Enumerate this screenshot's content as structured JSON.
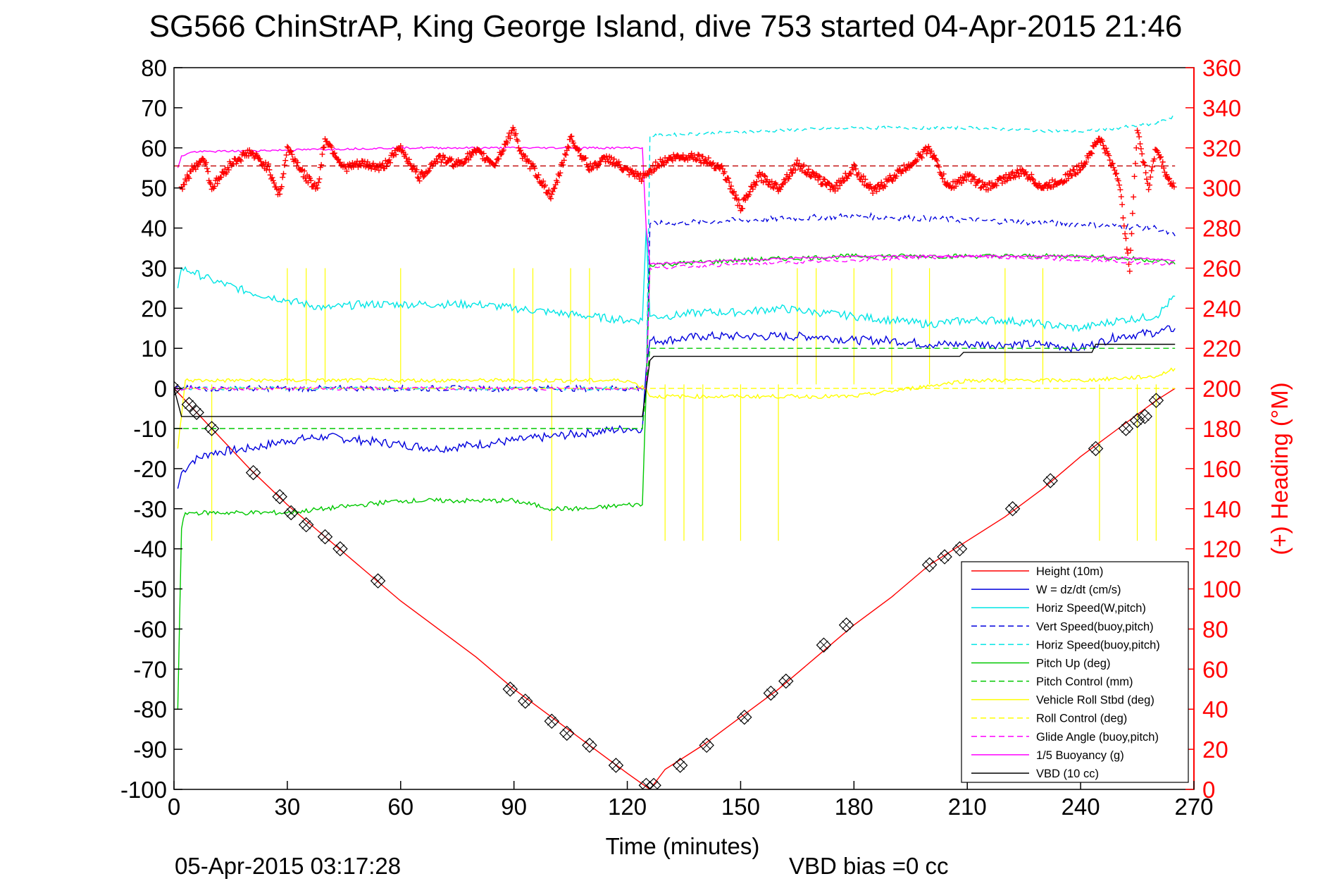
{
  "chart_data": {
    "type": "line",
    "title": "SG566 ChinStrAP, King George Island, dive 753 started 04-Apr-2015 21:46",
    "xlabel": "Time (minutes)",
    "ylabel_right": "(+) Heading (°M)",
    "footer_left": "05-Apr-2015 03:17:28",
    "footer_right": "VBD bias =0 cc",
    "xlim": [
      0,
      270
    ],
    "ylim": [
      -100,
      80
    ],
    "ylim_right": [
      0,
      360
    ],
    "xticks": [
      0,
      30,
      60,
      90,
      120,
      150,
      180,
      210,
      240,
      270
    ],
    "yticks": [
      80,
      70,
      60,
      50,
      40,
      30,
      20,
      10,
      0,
      -10,
      -20,
      -30,
      -40,
      -50,
      -60,
      -70,
      -80,
      -90,
      -100
    ],
    "yticks_right": [
      360,
      340,
      320,
      300,
      280,
      260,
      240,
      220,
      200,
      180,
      160,
      140,
      120,
      100,
      80,
      60,
      40,
      20,
      0
    ],
    "grid": false,
    "legend_position": "bottom-right",
    "series": [
      {
        "name": "Height (10m)",
        "color": "#ff0000",
        "style": "solid",
        "x": [
          0,
          10,
          20,
          30,
          40,
          50,
          60,
          70,
          80,
          90,
          100,
          110,
          120,
          126,
          130,
          140,
          150,
          160,
          170,
          180,
          190,
          200,
          210,
          220,
          230,
          240,
          250,
          260,
          265
        ],
        "y": [
          0,
          -10,
          -20,
          -29,
          -37,
          -45,
          -53,
          -60,
          -67,
          -75,
          -82,
          -89,
          -96,
          -100,
          -95,
          -89,
          -82,
          -75,
          -67,
          -59,
          -52,
          -44,
          -38,
          -32,
          -25,
          -17,
          -10,
          -3,
          0
        ]
      },
      {
        "name": "W = dz/dt (cm/s)",
        "color": "#0000dd",
        "style": "solid",
        "x": [
          1,
          2,
          5,
          10,
          20,
          30,
          40,
          50,
          60,
          70,
          80,
          90,
          100,
          110,
          120,
          124,
          125,
          126,
          130,
          140,
          150,
          160,
          170,
          180,
          190,
          200,
          210,
          220,
          230,
          240,
          250,
          260,
          265
        ],
        "y": [
          -25,
          -21,
          -18,
          -16,
          -15,
          -13,
          -12,
          -13,
          -14,
          -15,
          -14,
          -13,
          -12,
          -11,
          -10,
          -10,
          5,
          12,
          12,
          13,
          13,
          13,
          13,
          12,
          12,
          11,
          11,
          11,
          11,
          10,
          13,
          14,
          15
        ]
      },
      {
        "name": "Horiz Speed(W,pitch)",
        "color": "#00e5e5",
        "style": "solid",
        "x": [
          1,
          2,
          5,
          10,
          20,
          30,
          40,
          50,
          60,
          70,
          80,
          90,
          100,
          110,
          120,
          124,
          125,
          126,
          130,
          140,
          150,
          160,
          170,
          180,
          190,
          200,
          210,
          220,
          230,
          240,
          250,
          260,
          265
        ],
        "y": [
          25,
          30,
          29,
          27,
          24,
          22,
          20,
          21,
          21,
          21,
          21,
          20,
          19,
          18,
          17,
          17,
          40,
          18,
          18,
          19,
          19,
          20,
          19,
          18,
          17,
          16,
          17,
          17,
          16,
          15,
          17,
          18,
          23
        ]
      },
      {
        "name": "Vert Speed(buoy,pitch)",
        "color": "#0000dd",
        "style": "dashed",
        "x": [
          0,
          125,
          126,
          150,
          180,
          210,
          240,
          260,
          265
        ],
        "y": [
          0,
          0,
          41,
          42,
          43,
          42,
          41,
          40,
          38
        ]
      },
      {
        "name": "Horiz Speed(buoy,pitch)",
        "color": "#00e5e5",
        "style": "dashed",
        "x": [
          0,
          125,
          126,
          150,
          180,
          210,
          240,
          260,
          265
        ],
        "y": [
          0,
          0,
          63,
          64,
          65,
          65,
          64,
          66,
          68
        ]
      },
      {
        "name": "Pitch Up (deg)",
        "color": "#00c800",
        "style": "solid",
        "x": [
          1,
          2,
          3,
          5,
          10,
          20,
          30,
          40,
          50,
          60,
          70,
          80,
          90,
          100,
          110,
          120,
          124,
          125,
          126,
          130,
          150,
          180,
          210,
          240,
          260,
          265
        ],
        "y": [
          -80,
          -35,
          -31,
          -31,
          -31,
          -31,
          -31,
          -30,
          -29,
          -28,
          -28,
          -28,
          -28,
          -30,
          -30,
          -29,
          -29,
          0,
          31,
          31,
          32,
          33,
          33,
          33,
          32,
          31
        ]
      },
      {
        "name": "Pitch Control (mm)",
        "color": "#00c800",
        "style": "dashed",
        "x": [
          0,
          5,
          124,
          125,
          126,
          265
        ],
        "y": [
          -10,
          -10,
          -10,
          0,
          10,
          10
        ]
      },
      {
        "name": "Vehicle Roll Stbd (deg)",
        "color": "#ffff00",
        "style": "solid",
        "x": [
          1,
          3,
          10,
          30,
          60,
          90,
          120,
          125,
          126,
          150,
          180,
          210,
          240,
          260,
          265
        ],
        "y": [
          -15,
          2,
          2,
          2,
          2,
          2,
          2,
          0,
          -2,
          -2,
          -2,
          2,
          2,
          3,
          5
        ]
      },
      {
        "name": "Roll Control (deg)",
        "color": "#ffff00",
        "style": "dashed",
        "x": [
          0,
          125,
          265
        ],
        "y": [
          0,
          0,
          0
        ]
      },
      {
        "name": "Glide Angle (buoy,pitch)",
        "color": "#ff00ff",
        "style": "dashed",
        "x": [
          0,
          125,
          126,
          150,
          180,
          210,
          240,
          265
        ],
        "y": [
          0,
          0,
          30,
          31,
          32,
          33,
          32,
          31
        ]
      },
      {
        "name": "1/5 Buoyancy (g)",
        "color": "#ff00ff",
        "style": "solid",
        "x": [
          1,
          2,
          5,
          60,
          124,
          125,
          126,
          150,
          180,
          210,
          240,
          265
        ],
        "y": [
          55,
          58,
          59,
          60,
          60,
          40,
          31,
          32,
          33,
          33,
          33,
          32
        ]
      },
      {
        "name": "VBD (10 cc)",
        "color": "#000000",
        "style": "solid",
        "x": [
          0,
          2,
          124,
          125,
          126,
          127,
          208,
          209,
          243,
          244,
          265
        ],
        "y": [
          0,
          -7,
          -7,
          0,
          7,
          8,
          8,
          9,
          9,
          11,
          11
        ]
      },
      {
        "name": "(+) Heading (°M)",
        "color": "#ff0000",
        "style": "markers",
        "axis": "right",
        "x": [
          2,
          5,
          8,
          10,
          15,
          20,
          25,
          28,
          30,
          35,
          38,
          40,
          45,
          50,
          55,
          60,
          65,
          70,
          75,
          80,
          85,
          90,
          92,
          95,
          100,
          105,
          110,
          115,
          120,
          124,
          128,
          132,
          138,
          145,
          150,
          155,
          160,
          165,
          170,
          175,
          180,
          185,
          190,
          195,
          200,
          205,
          210,
          215,
          220,
          225,
          230,
          235,
          240,
          245,
          250,
          253,
          255,
          258,
          260,
          263,
          265
        ],
        "y": [
          300,
          310,
          315,
          300,
          312,
          318,
          310,
          296,
          320,
          305,
          300,
          325,
          310,
          312,
          310,
          320,
          305,
          315,
          312,
          318,
          312,
          330,
          316,
          310,
          295,
          325,
          310,
          315,
          308,
          305,
          312,
          315,
          316,
          310,
          290,
          306,
          300,
          312,
          305,
          300,
          310,
          298,
          305,
          312,
          320,
          300,
          306,
          300,
          305,
          308,
          300,
          304,
          310,
          325,
          305,
          260,
          330,
          300,
          320,
          305,
          300
        ]
      },
      {
        "name": "Heading target (°M)",
        "color": "#c00000",
        "style": "dashed",
        "axis": "right",
        "x": [
          0,
          265
        ],
        "y": [
          311,
          311
        ]
      },
      {
        "name": "Depth markers",
        "color": "#000000",
        "style": "box-markers",
        "x": [
          0,
          4,
          6,
          10,
          21,
          28,
          31,
          35,
          40,
          44,
          54,
          89,
          93,
          100,
          104,
          110,
          117,
          125,
          127,
          134,
          141,
          151,
          158,
          162,
          172,
          178,
          200,
          204,
          208,
          222,
          232,
          244,
          252,
          255,
          257,
          260
        ],
        "y": [
          0,
          -4,
          -6,
          -10,
          -21,
          -27,
          -31,
          -34,
          -37,
          -40,
          -48,
          -75,
          -78,
          -83,
          -86,
          -89,
          -94,
          -99,
          -99,
          -94,
          -89,
          -82,
          -76,
          -73,
          -64,
          -59,
          -44,
          -42,
          -40,
          -30,
          -23,
          -15,
          -10,
          -8,
          -7,
          -3
        ]
      }
    ],
    "spikes": [
      {
        "series": "Vehicle Roll Stbd (deg)",
        "color": "#ffff00",
        "x": [
          10,
          30,
          35,
          40,
          60,
          90,
          95,
          100,
          105,
          110,
          130,
          135,
          140,
          150,
          160,
          165,
          170,
          180,
          190,
          200,
          220,
          230,
          245,
          255,
          260
        ],
        "y": [
          -38,
          30,
          30,
          30,
          30,
          30,
          30,
          -38,
          30,
          30,
          -38,
          -38,
          -38,
          -38,
          -38,
          30,
          30,
          30,
          30,
          30,
          30,
          30,
          -38,
          -38,
          -38
        ]
      }
    ]
  }
}
